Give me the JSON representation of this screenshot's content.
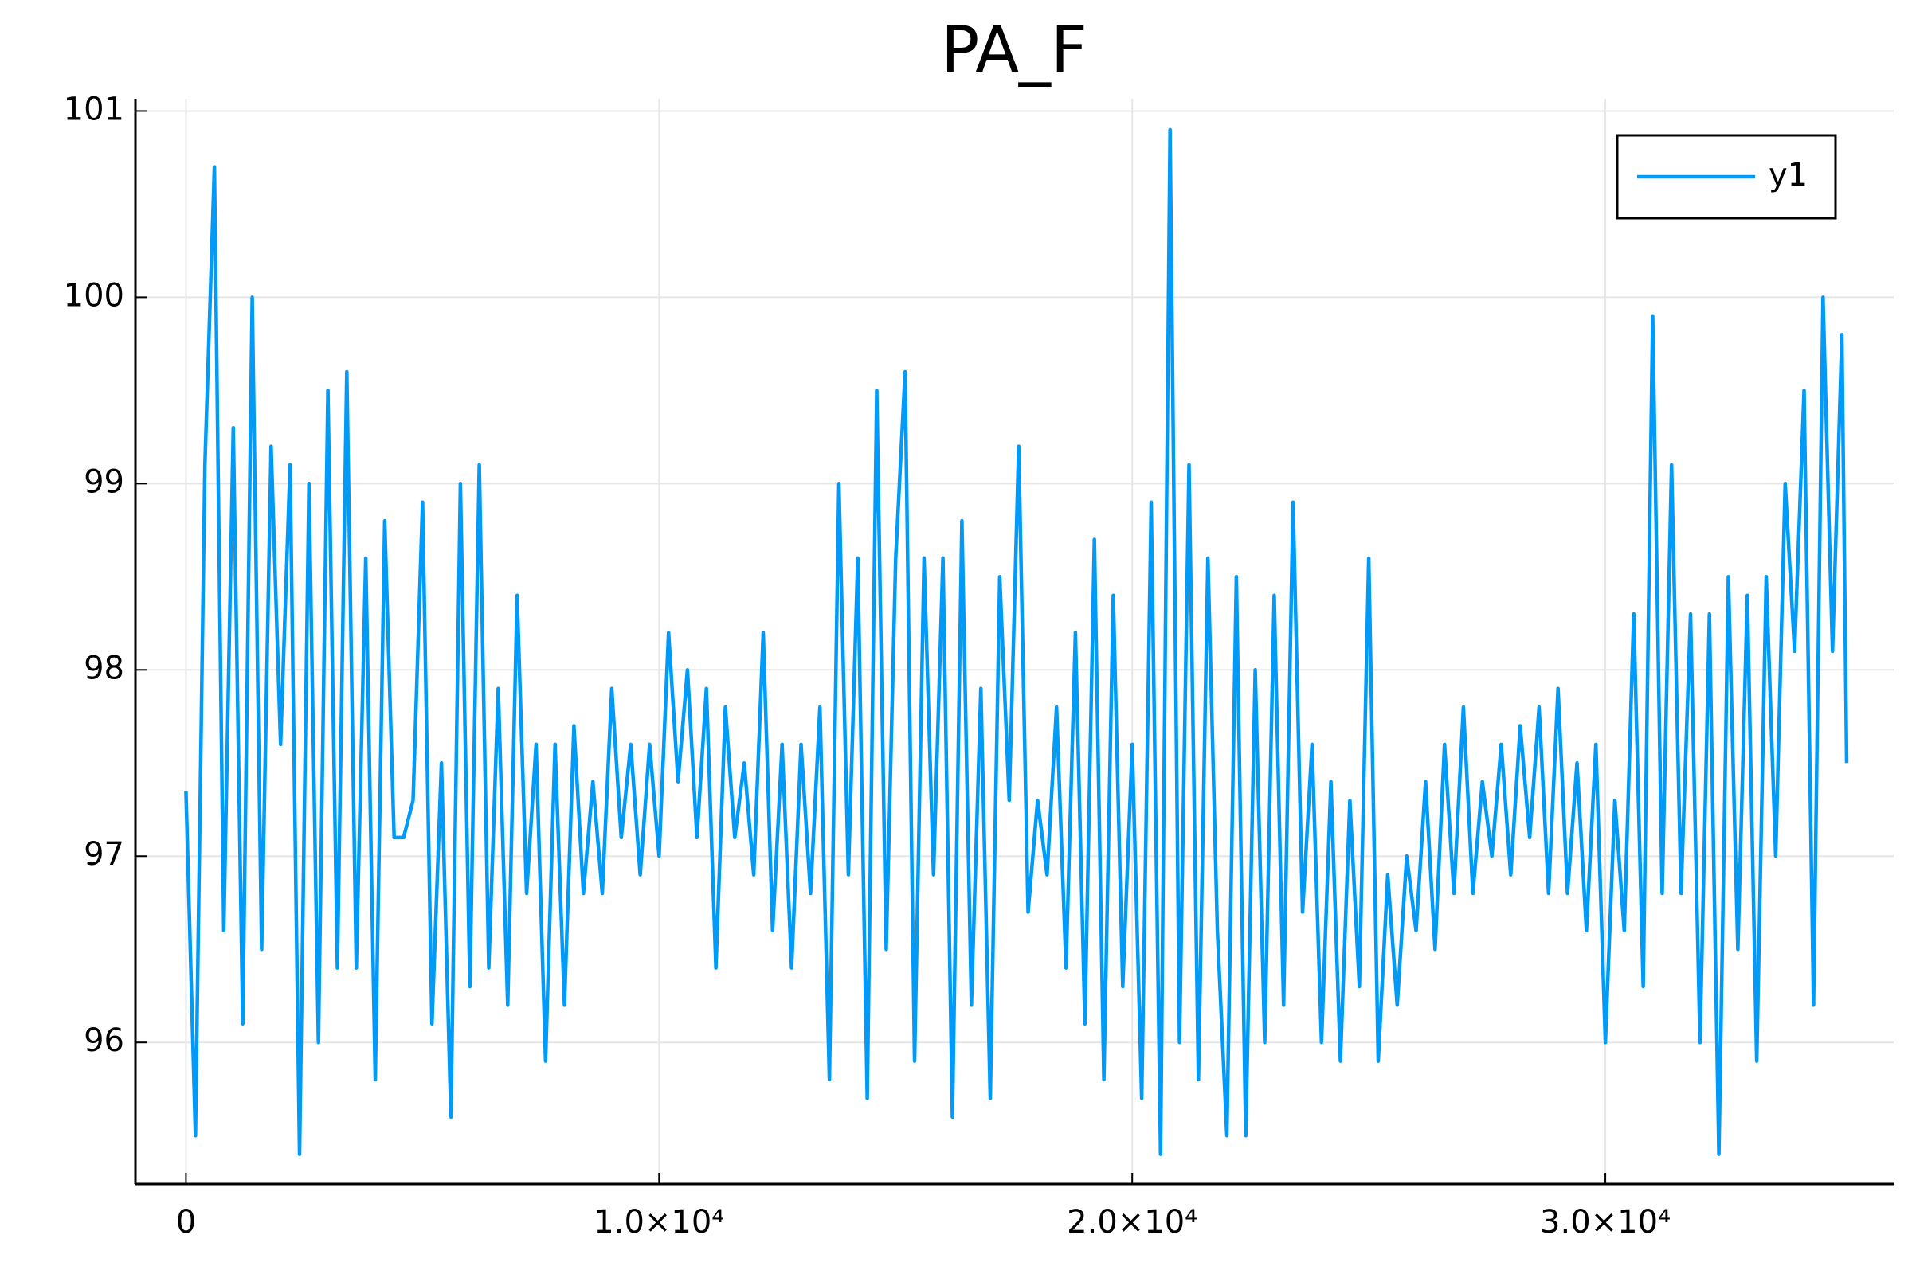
{
  "chart_data": {
    "type": "line",
    "title": "PA_F",
    "x": [
      0,
      200,
      400,
      600,
      800,
      1000,
      1200,
      1400,
      1600,
      1800,
      2000,
      2200,
      2400,
      2600,
      2800,
      3000,
      3200,
      3400,
      3600,
      3800,
      4000,
      4200,
      4400,
      4600,
      4800,
      5000,
      5200,
      5400,
      5600,
      5800,
      6000,
      6200,
      6400,
      6600,
      6800,
      7000,
      7200,
      7400,
      7600,
      7800,
      8000,
      8200,
      8400,
      8600,
      8800,
      9000,
      9200,
      9400,
      9600,
      9800,
      10000,
      10200,
      10400,
      10600,
      10800,
      11000,
      11200,
      11400,
      11600,
      11800,
      12000,
      12200,
      12400,
      12600,
      12800,
      13000,
      13200,
      13400,
      13600,
      13800,
      14000,
      14200,
      14400,
      14600,
      14800,
      15000,
      15200,
      15400,
      15600,
      15800,
      16000,
      16200,
      16400,
      16600,
      16800,
      17000,
      17200,
      17400,
      17600,
      17800,
      18000,
      18200,
      18400,
      18600,
      18800,
      19000,
      19200,
      19400,
      19600,
      19800,
      20000,
      20200,
      20400,
      20600,
      20800,
      21000,
      21200,
      21400,
      21600,
      21800,
      22000,
      22200,
      22400,
      22600,
      22800,
      23000,
      23200,
      23400,
      23600,
      23800,
      24000,
      24200,
      24400,
      24600,
      24800,
      25000,
      25200,
      25400,
      25600,
      25800,
      26000,
      26200,
      26400,
      26600,
      26800,
      27000,
      27200,
      27400,
      27600,
      27800,
      28000,
      28200,
      28400,
      28600,
      28800,
      29000,
      29200,
      29400,
      29600,
      29800,
      30000,
      30200,
      30400,
      30600,
      30800,
      31000,
      31200,
      31400,
      31600,
      31800,
      32000,
      32200,
      32400,
      32600,
      32800,
      33000,
      33200,
      33400,
      33600,
      33800,
      34000,
      34200,
      34400,
      34600,
      34800,
      35000,
      35100
    ],
    "series": [
      {
        "name": "y1",
        "color": "#009af9",
        "values": [
          97.35,
          95.5,
          99.1,
          100.7,
          96.6,
          99.3,
          96.1,
          100.0,
          96.5,
          99.2,
          97.6,
          99.1,
          95.4,
          99.0,
          96.0,
          99.5,
          96.4,
          99.6,
          96.4,
          98.6,
          95.8,
          98.8,
          97.1,
          97.1,
          97.3,
          98.9,
          96.1,
          97.5,
          95.6,
          99.0,
          96.3,
          99.1,
          96.4,
          97.9,
          96.2,
          98.4,
          96.8,
          97.6,
          95.9,
          97.6,
          96.2,
          97.7,
          96.8,
          97.4,
          96.8,
          97.9,
          97.1,
          97.6,
          96.9,
          97.6,
          97.0,
          98.2,
          97.4,
          98.0,
          97.1,
          97.9,
          96.4,
          97.8,
          97.1,
          97.5,
          96.9,
          98.2,
          96.6,
          97.6,
          96.4,
          97.6,
          96.8,
          97.8,
          95.8,
          99.0,
          96.9,
          98.6,
          95.7,
          99.5,
          96.5,
          98.6,
          99.6,
          95.9,
          98.6,
          96.9,
          98.6,
          95.6,
          98.8,
          96.2,
          97.9,
          95.7,
          98.5,
          97.3,
          99.2,
          96.7,
          97.3,
          96.9,
          97.8,
          96.4,
          98.2,
          96.1,
          98.7,
          95.8,
          98.4,
          96.3,
          97.6,
          95.7,
          98.9,
          95.4,
          100.9,
          96.0,
          99.1,
          95.8,
          98.6,
          96.6,
          95.5,
          98.5,
          95.5,
          98.0,
          96.0,
          98.4,
          96.2,
          98.9,
          96.7,
          97.6,
          96.0,
          97.4,
          95.9,
          97.3,
          96.3,
          98.6,
          95.9,
          96.9,
          96.2,
          97.0,
          96.6,
          97.4,
          96.5,
          97.6,
          96.8,
          97.8,
          96.8,
          97.4,
          97.0,
          97.6,
          96.9,
          97.7,
          97.1,
          97.8,
          96.8,
          97.9,
          96.8,
          97.5,
          96.6,
          97.6,
          96.0,
          97.3,
          96.6,
          98.3,
          96.3,
          99.9,
          96.8,
          99.1,
          96.8,
          98.3,
          96.0,
          98.3,
          95.4,
          98.5,
          96.5,
          98.4,
          95.9,
          98.5,
          97.0,
          99.0,
          98.1,
          99.5,
          96.2,
          100.0,
          98.1,
          99.8,
          97.5
        ]
      }
    ],
    "xlim": [
      -1068,
      36094
    ],
    "ylim": [
      95.24,
      101.066
    ],
    "xticks": [
      0,
      {
        "value": 10000,
        "label": "1.0×10⁴"
      },
      {
        "value": 20000,
        "label": "2.0×10⁴"
      },
      {
        "value": 30000,
        "label": "3.0×10⁴"
      }
    ],
    "yticks": [
      96,
      97,
      98,
      99,
      100,
      101
    ],
    "grid": true,
    "legend": "top-right"
  }
}
